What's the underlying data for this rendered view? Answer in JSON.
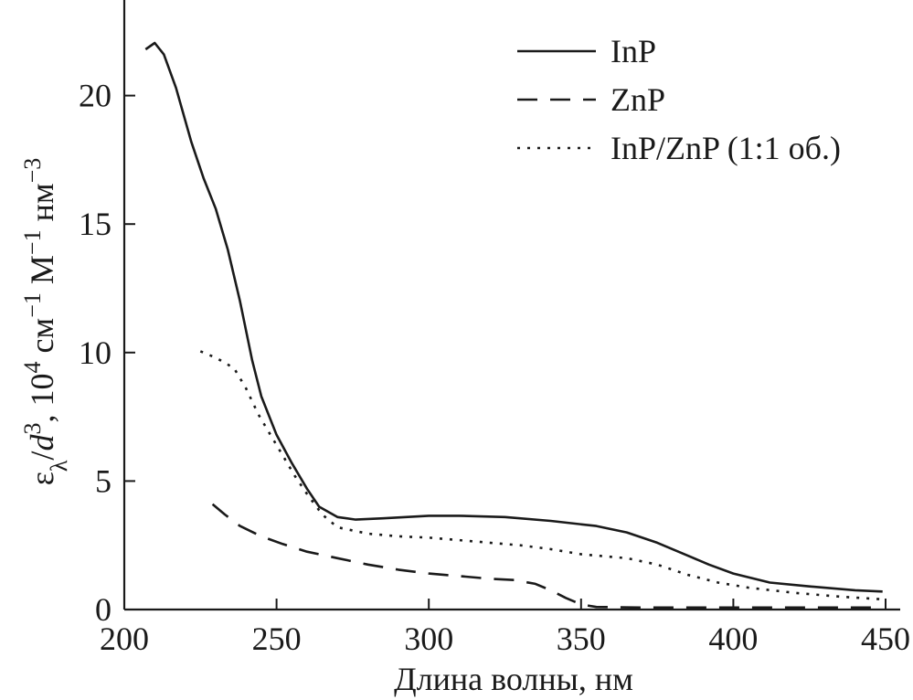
{
  "chart_data": {
    "type": "line",
    "xlabel": "Длина волны, нм",
    "ylabel_parts": {
      "epsilon": "ε",
      "epsilon_sub": "λ",
      "slash_d": "/",
      "d": "d",
      "d_sup": "3",
      "unit_pre": ", 10",
      "unit_pre_sup": "4",
      "unit_cm": " см",
      "unit_cm_sup": "−1",
      "unit_m": " М",
      "unit_m_sup": "−1",
      "unit_nm": " нм",
      "unit_nm_sup": "−3"
    },
    "xlim": [
      200,
      450
    ],
    "ylim": [
      0,
      23.5
    ],
    "xticks": [
      "200",
      "250",
      "300",
      "350",
      "400",
      "450"
    ],
    "yticks": [
      "0",
      "5",
      "10",
      "15",
      "20"
    ],
    "grid": false,
    "legend_position": "top-right",
    "series": [
      {
        "name": "InP",
        "style": "solid",
        "points": [
          [
            207,
            21.8
          ],
          [
            210,
            22.05
          ],
          [
            213,
            21.6
          ],
          [
            217,
            20.3
          ],
          [
            222,
            18.2
          ],
          [
            226,
            16.8
          ],
          [
            230,
            15.6
          ],
          [
            234,
            14.0
          ],
          [
            238,
            12.0
          ],
          [
            242,
            9.7
          ],
          [
            245,
            8.3
          ],
          [
            250,
            6.8
          ],
          [
            255,
            5.7
          ],
          [
            260,
            4.7
          ],
          [
            264,
            4.0
          ],
          [
            270,
            3.6
          ],
          [
            276,
            3.5
          ],
          [
            285,
            3.55
          ],
          [
            300,
            3.65
          ],
          [
            310,
            3.65
          ],
          [
            325,
            3.6
          ],
          [
            340,
            3.45
          ],
          [
            355,
            3.25
          ],
          [
            365,
            3.0
          ],
          [
            375,
            2.6
          ],
          [
            385,
            2.1
          ],
          [
            392,
            1.75
          ],
          [
            400,
            1.4
          ],
          [
            412,
            1.05
          ],
          [
            425,
            0.9
          ],
          [
            440,
            0.75
          ],
          [
            449,
            0.7
          ]
        ]
      },
      {
        "name": "ZnP",
        "style": "dashed",
        "points": [
          [
            229,
            4.1
          ],
          [
            233,
            3.7
          ],
          [
            238,
            3.25
          ],
          [
            245,
            2.85
          ],
          [
            252,
            2.55
          ],
          [
            260,
            2.25
          ],
          [
            270,
            2.0
          ],
          [
            280,
            1.75
          ],
          [
            290,
            1.55
          ],
          [
            300,
            1.4
          ],
          [
            310,
            1.3
          ],
          [
            320,
            1.2
          ],
          [
            328,
            1.15
          ],
          [
            335,
            1.0
          ],
          [
            340,
            0.75
          ],
          [
            345,
            0.45
          ],
          [
            350,
            0.2
          ],
          [
            355,
            0.1
          ],
          [
            370,
            0.08
          ],
          [
            400,
            0.08
          ],
          [
            430,
            0.08
          ],
          [
            449,
            0.08
          ]
        ]
      },
      {
        "name": "InP/ZnP (1:1 об.)",
        "style": "dotted",
        "points": [
          [
            225,
            10.05
          ],
          [
            230,
            9.8
          ],
          [
            236,
            9.4
          ],
          [
            240,
            8.6
          ],
          [
            244,
            7.6
          ],
          [
            248,
            6.8
          ],
          [
            252,
            6.0
          ],
          [
            256,
            5.2
          ],
          [
            260,
            4.5
          ],
          [
            265,
            3.7
          ],
          [
            270,
            3.2
          ],
          [
            280,
            2.95
          ],
          [
            290,
            2.85
          ],
          [
            300,
            2.8
          ],
          [
            310,
            2.7
          ],
          [
            320,
            2.6
          ],
          [
            330,
            2.5
          ],
          [
            340,
            2.35
          ],
          [
            350,
            2.15
          ],
          [
            365,
            2.0
          ],
          [
            375,
            1.75
          ],
          [
            385,
            1.35
          ],
          [
            395,
            1.05
          ],
          [
            405,
            0.85
          ],
          [
            420,
            0.65
          ],
          [
            435,
            0.5
          ],
          [
            449,
            0.4
          ]
        ]
      }
    ]
  }
}
